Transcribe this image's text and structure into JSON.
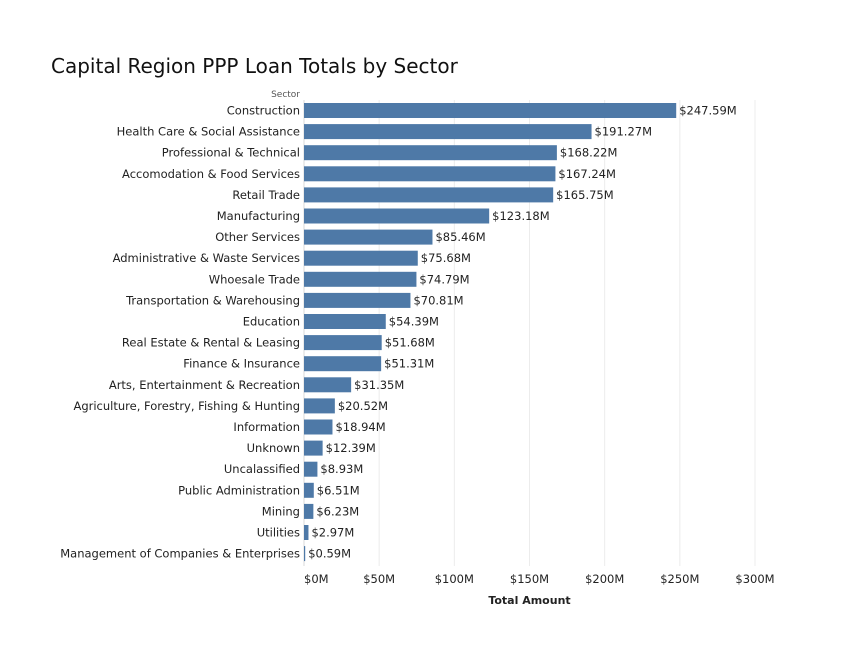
{
  "chart_data": {
    "type": "bar",
    "orientation": "horizontal",
    "title": "Capital Region PPP Loan Totals by Sector",
    "row_header": "Sector",
    "xlabel": "Total Amount",
    "xlim": [
      0,
      300
    ],
    "x_ticks": [
      0,
      50,
      100,
      150,
      200,
      250,
      300
    ],
    "x_tick_labels": [
      "$0M",
      "$50M",
      "$100M",
      "$150M",
      "$200M",
      "$250M",
      "$300M"
    ],
    "grid": "vertical",
    "bar_color": "#4e79a7",
    "categories": [
      "Construction",
      "Health Care & Social Assistance",
      "Professional & Technical",
      "Accomodation & Food Services",
      "Retail Trade",
      "Manufacturing",
      "Other Services",
      "Administrative & Waste Services",
      "Whoesale Trade",
      "Transportation & Warehousing",
      "Education",
      "Real Estate & Rental & Leasing",
      "Finance & Insurance",
      "Arts, Entertainment & Recreation",
      "Agriculture, Forestry, Fishing & Hunting",
      "Information",
      "Unknown",
      "Uncalassified",
      "Public Administration",
      "Mining",
      "Utilities",
      "Management of Companies & Enterprises"
    ],
    "values": [
      247.59,
      191.27,
      168.22,
      167.24,
      165.75,
      123.18,
      85.46,
      75.68,
      74.79,
      70.81,
      54.39,
      51.68,
      51.31,
      31.35,
      20.52,
      18.94,
      12.39,
      8.93,
      6.51,
      6.23,
      2.97,
      0.59
    ],
    "value_labels": [
      "$247.59M",
      "$191.27M",
      "$168.22M",
      "$167.24M",
      "$165.75M",
      "$123.18M",
      "$85.46M",
      "$75.68M",
      "$74.79M",
      "$70.81M",
      "$54.39M",
      "$51.68M",
      "$51.31M",
      "$31.35M",
      "$20.52M",
      "$18.94M",
      "$12.39M",
      "$8.93M",
      "$6.51M",
      "$6.23M",
      "$2.97M",
      "$0.59M"
    ]
  }
}
